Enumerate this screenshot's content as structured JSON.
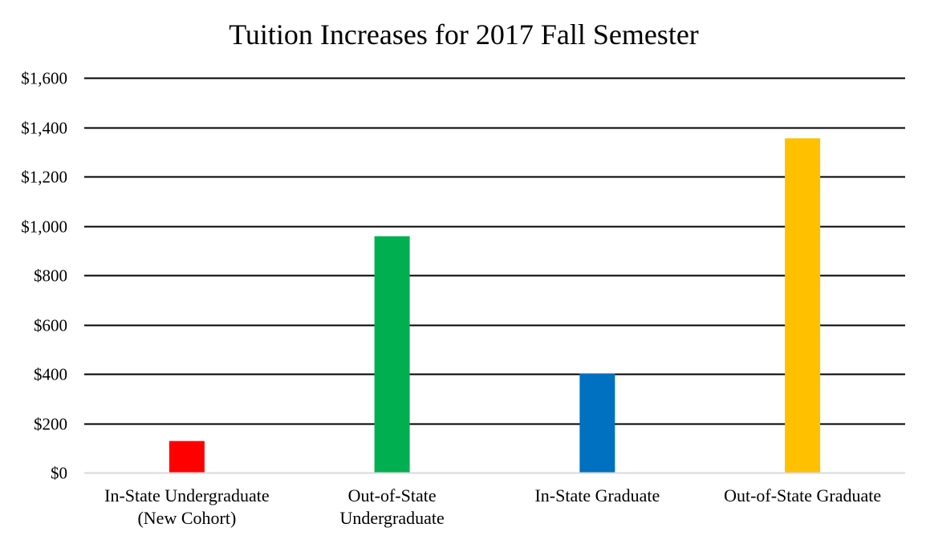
{
  "chart_data": {
    "type": "bar",
    "title": "Tuition Increases for 2017 Fall Semester",
    "xlabel": "",
    "ylabel": "",
    "categories": [
      [
        "In-State Undergraduate",
        "(New Cohort)"
      ],
      [
        "Out-of-State",
        "Undergraduate"
      ],
      [
        "In-State Graduate"
      ],
      [
        "Out-of-State Graduate"
      ]
    ],
    "values": [
      128,
      958,
      402,
      1355
    ],
    "colors": [
      "#ff0000",
      "#00b050",
      "#0070c0",
      "#ffc000"
    ],
    "ylim": [
      0,
      1600
    ],
    "y_ticks": [
      0,
      200,
      400,
      600,
      800,
      1000,
      1200,
      1400,
      1600
    ],
    "y_tick_labels": [
      "$0",
      "$200",
      "$400",
      "$600",
      "$800",
      "$1,000",
      "$1,200",
      "$1,400",
      "$1,600"
    ],
    "grid": true,
    "legend": "none",
    "gridline_color": "#000000",
    "axis_color": "#d9d9d9"
  }
}
